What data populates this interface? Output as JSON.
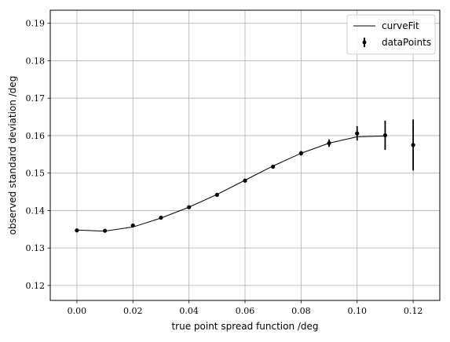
{
  "chart_data": {
    "type": "scatter",
    "xlabel": "true point spread function  /deg",
    "ylabel": "observed standard deviation  /deg",
    "xlim": [
      -0.0095,
      0.1295
    ],
    "ylim": [
      0.116,
      0.1935
    ],
    "x_ticks": [
      0.0,
      0.02,
      0.04,
      0.06,
      0.08,
      0.1,
      0.12
    ],
    "x_tick_labels": [
      "0.00",
      "0.02",
      "0.04",
      "0.06",
      "0.08",
      "0.10",
      "0.12"
    ],
    "y_ticks": [
      0.12,
      0.13,
      0.14,
      0.15,
      0.16,
      0.17,
      0.18,
      0.19
    ],
    "y_tick_labels": [
      "0.12",
      "0.13",
      "0.14",
      "0.15",
      "0.16",
      "0.17",
      "0.18",
      "0.19"
    ],
    "grid": true,
    "legend_position": "top-right",
    "series": [
      {
        "name": "curveFit",
        "kind": "line",
        "color": "#000000",
        "x": [
          0.0,
          0.01,
          0.02,
          0.03,
          0.04,
          0.05,
          0.06,
          0.07,
          0.08,
          0.09,
          0.1,
          0.11
        ],
        "y": [
          0.1348,
          0.1345,
          0.1356,
          0.138,
          0.1409,
          0.1443,
          0.1481,
          0.1519,
          0.1553,
          0.158,
          0.1597,
          0.1599
        ]
      },
      {
        "name": "dataPoints",
        "kind": "errorbar",
        "color": "#000000",
        "x": [
          0.0,
          0.01,
          0.02,
          0.03,
          0.04,
          0.05,
          0.06,
          0.07,
          0.08,
          0.09,
          0.1,
          0.11,
          0.12
        ],
        "y": [
          0.1347,
          0.1346,
          0.136,
          0.1381,
          0.1409,
          0.1442,
          0.148,
          0.1517,
          0.1553,
          0.158,
          0.1606,
          0.1601,
          0.1575
        ],
        "yerr": [
          0.0002,
          0.0002,
          0.0003,
          0.0003,
          0.0003,
          0.0003,
          0.0003,
          0.0005,
          0.0006,
          0.001,
          0.0019,
          0.0039,
          0.0068
        ]
      }
    ]
  }
}
